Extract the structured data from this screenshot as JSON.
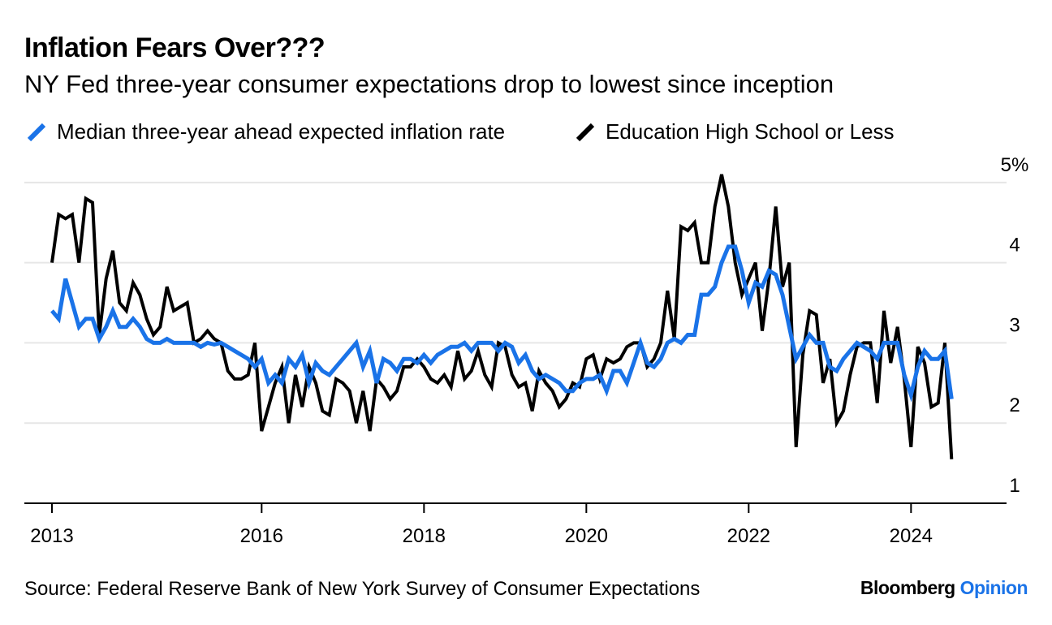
{
  "header": {
    "title": "Inflation Fears Over???",
    "subtitle": "NY Fed three-year consumer expectations drop to lowest since inception"
  },
  "footer": {
    "source": "Source: Federal Reserve Bank of New York Survey of Consumer Expectations",
    "brand_primary": "Bloomberg",
    "brand_accent": "Opinion"
  },
  "colors": {
    "median_series": "#1a73e8",
    "education_series": "#000000",
    "gridline": "#e6e6e6"
  },
  "chart_data": {
    "type": "line",
    "title": "Inflation Fears Over???",
    "subtitle": "NY Fed three-year consumer expectations drop to lowest since inception",
    "xlabel": "",
    "ylabel": "",
    "ylim": [
      1,
      5
    ],
    "y_ticks": [
      {
        "value": 5,
        "label": "5%"
      },
      {
        "value": 4,
        "label": "4"
      },
      {
        "value": 3,
        "label": "3"
      },
      {
        "value": 2,
        "label": "2"
      },
      {
        "value": 1,
        "label": "1"
      }
    ],
    "x_ticks": [
      {
        "value": "2013-06",
        "label": "2013"
      },
      {
        "value": "2016-01",
        "label": "2016"
      },
      {
        "value": "2018-01",
        "label": "2018"
      },
      {
        "value": "2020-01",
        "label": "2020"
      },
      {
        "value": "2022-01",
        "label": "2022"
      },
      {
        "value": "2024-01",
        "label": "2024"
      }
    ],
    "xlim": [
      "2013-03",
      "2025-04"
    ],
    "grid": true,
    "legend_position": "top-left",
    "series": [
      {
        "name": "Median three-year ahead expected inflation rate",
        "color": "#1a73e8",
        "points": [
          [
            "2013-06",
            3.4
          ],
          [
            "2013-07",
            3.3
          ],
          [
            "2013-08",
            3.8
          ],
          [
            "2013-09",
            3.5
          ],
          [
            "2013-10",
            3.2
          ],
          [
            "2013-11",
            3.3
          ],
          [
            "2013-12",
            3.3
          ],
          [
            "2014-01",
            3.05
          ],
          [
            "2014-02",
            3.2
          ],
          [
            "2014-03",
            3.4
          ],
          [
            "2014-04",
            3.2
          ],
          [
            "2014-05",
            3.2
          ],
          [
            "2014-06",
            3.3
          ],
          [
            "2014-07",
            3.2
          ],
          [
            "2014-08",
            3.05
          ],
          [
            "2014-09",
            3.0
          ],
          [
            "2014-10",
            3.0
          ],
          [
            "2014-11",
            3.05
          ],
          [
            "2014-12",
            3.0
          ],
          [
            "2015-01",
            3.0
          ],
          [
            "2015-02",
            3.0
          ],
          [
            "2015-03",
            3.0
          ],
          [
            "2015-04",
            2.95
          ],
          [
            "2015-05",
            3.0
          ],
          [
            "2015-06",
            2.98
          ],
          [
            "2015-07",
            3.0
          ],
          [
            "2015-08",
            2.95
          ],
          [
            "2015-09",
            2.9
          ],
          [
            "2015-10",
            2.85
          ],
          [
            "2015-11",
            2.8
          ],
          [
            "2015-12",
            2.7
          ],
          [
            "2016-01",
            2.8
          ],
          [
            "2016-02",
            2.5
          ],
          [
            "2016-03",
            2.6
          ],
          [
            "2016-04",
            2.5
          ],
          [
            "2016-05",
            2.8
          ],
          [
            "2016-06",
            2.7
          ],
          [
            "2016-07",
            2.85
          ],
          [
            "2016-08",
            2.5
          ],
          [
            "2016-09",
            2.75
          ],
          [
            "2016-10",
            2.65
          ],
          [
            "2016-11",
            2.6
          ],
          [
            "2016-12",
            2.7
          ],
          [
            "2017-01",
            2.8
          ],
          [
            "2017-02",
            2.9
          ],
          [
            "2017-03",
            3.0
          ],
          [
            "2017-04",
            2.7
          ],
          [
            "2017-05",
            2.9
          ],
          [
            "2017-06",
            2.5
          ],
          [
            "2017-07",
            2.8
          ],
          [
            "2017-08",
            2.75
          ],
          [
            "2017-09",
            2.65
          ],
          [
            "2017-10",
            2.8
          ],
          [
            "2017-11",
            2.8
          ],
          [
            "2017-12",
            2.75
          ],
          [
            "2018-01",
            2.85
          ],
          [
            "2018-02",
            2.75
          ],
          [
            "2018-03",
            2.85
          ],
          [
            "2018-04",
            2.9
          ],
          [
            "2018-05",
            2.95
          ],
          [
            "2018-06",
            2.95
          ],
          [
            "2018-07",
            3.0
          ],
          [
            "2018-08",
            2.9
          ],
          [
            "2018-09",
            3.0
          ],
          [
            "2018-10",
            3.0
          ],
          [
            "2018-11",
            3.0
          ],
          [
            "2018-12",
            2.9
          ],
          [
            "2019-01",
            3.0
          ],
          [
            "2019-02",
            2.95
          ],
          [
            "2019-03",
            2.75
          ],
          [
            "2019-04",
            2.85
          ],
          [
            "2019-05",
            2.65
          ],
          [
            "2019-06",
            2.55
          ],
          [
            "2019-07",
            2.6
          ],
          [
            "2019-08",
            2.55
          ],
          [
            "2019-09",
            2.5
          ],
          [
            "2019-10",
            2.4
          ],
          [
            "2019-11",
            2.4
          ],
          [
            "2019-12",
            2.5
          ],
          [
            "2020-01",
            2.55
          ],
          [
            "2020-02",
            2.55
          ],
          [
            "2020-03",
            2.6
          ],
          [
            "2020-04",
            2.4
          ],
          [
            "2020-05",
            2.65
          ],
          [
            "2020-06",
            2.65
          ],
          [
            "2020-07",
            2.5
          ],
          [
            "2020-08",
            2.75
          ],
          [
            "2020-09",
            3.0
          ],
          [
            "2020-10",
            2.75
          ],
          [
            "2020-11",
            2.7
          ],
          [
            "2020-12",
            2.8
          ],
          [
            "2021-01",
            3.0
          ],
          [
            "2021-02",
            3.05
          ],
          [
            "2021-03",
            3.0
          ],
          [
            "2021-04",
            3.1
          ],
          [
            "2021-05",
            3.1
          ],
          [
            "2021-06",
            3.6
          ],
          [
            "2021-07",
            3.6
          ],
          [
            "2021-08",
            3.7
          ],
          [
            "2021-09",
            4.0
          ],
          [
            "2021-10",
            4.2
          ],
          [
            "2021-11",
            4.2
          ],
          [
            "2021-12",
            3.9
          ],
          [
            "2022-01",
            3.5
          ],
          [
            "2022-02",
            3.75
          ],
          [
            "2022-03",
            3.7
          ],
          [
            "2022-04",
            3.9
          ],
          [
            "2022-05",
            3.85
          ],
          [
            "2022-06",
            3.6
          ],
          [
            "2022-07",
            3.2
          ],
          [
            "2022-08",
            2.8
          ],
          [
            "2022-09",
            2.95
          ],
          [
            "2022-10",
            3.1
          ],
          [
            "2022-11",
            3.0
          ],
          [
            "2022-12",
            3.0
          ],
          [
            "2023-01",
            2.7
          ],
          [
            "2023-02",
            2.65
          ],
          [
            "2023-03",
            2.8
          ],
          [
            "2023-04",
            2.9
          ],
          [
            "2023-05",
            3.0
          ],
          [
            "2023-06",
            2.95
          ],
          [
            "2023-07",
            2.9
          ],
          [
            "2023-08",
            2.8
          ],
          [
            "2023-09",
            3.0
          ],
          [
            "2023-10",
            3.0
          ],
          [
            "2023-11",
            3.0
          ],
          [
            "2023-12",
            2.6
          ],
          [
            "2024-01",
            2.35
          ],
          [
            "2024-02",
            2.7
          ],
          [
            "2024-03",
            2.9
          ],
          [
            "2024-04",
            2.8
          ],
          [
            "2024-05",
            2.8
          ],
          [
            "2024-06",
            2.9
          ],
          [
            "2024-07",
            2.3
          ]
        ]
      },
      {
        "name": "Education High School or Less",
        "color": "#000000",
        "points": [
          [
            "2013-06",
            4.0
          ],
          [
            "2013-07",
            4.6
          ],
          [
            "2013-08",
            4.55
          ],
          [
            "2013-09",
            4.6
          ],
          [
            "2013-10",
            4.0
          ],
          [
            "2013-11",
            4.8
          ],
          [
            "2013-12",
            4.75
          ],
          [
            "2014-01",
            3.1
          ],
          [
            "2014-02",
            3.8
          ],
          [
            "2014-03",
            4.15
          ],
          [
            "2014-04",
            3.5
          ],
          [
            "2014-05",
            3.4
          ],
          [
            "2014-06",
            3.75
          ],
          [
            "2014-07",
            3.6
          ],
          [
            "2014-08",
            3.3
          ],
          [
            "2014-09",
            3.1
          ],
          [
            "2014-10",
            3.2
          ],
          [
            "2014-11",
            3.7
          ],
          [
            "2014-12",
            3.4
          ],
          [
            "2015-01",
            3.45
          ],
          [
            "2015-02",
            3.5
          ],
          [
            "2015-03",
            3.0
          ],
          [
            "2015-04",
            3.05
          ],
          [
            "2015-05",
            3.15
          ],
          [
            "2015-06",
            3.05
          ],
          [
            "2015-07",
            3.0
          ],
          [
            "2015-08",
            2.65
          ],
          [
            "2015-09",
            2.55
          ],
          [
            "2015-10",
            2.55
          ],
          [
            "2015-11",
            2.6
          ],
          [
            "2015-12",
            3.0
          ],
          [
            "2016-01",
            1.9
          ],
          [
            "2016-02",
            2.2
          ],
          [
            "2016-03",
            2.5
          ],
          [
            "2016-04",
            2.7
          ],
          [
            "2016-05",
            2.0
          ],
          [
            "2016-06",
            2.6
          ],
          [
            "2016-07",
            2.2
          ],
          [
            "2016-08",
            2.7
          ],
          [
            "2016-09",
            2.5
          ],
          [
            "2016-10",
            2.15
          ],
          [
            "2016-11",
            2.1
          ],
          [
            "2016-12",
            2.55
          ],
          [
            "2017-01",
            2.5
          ],
          [
            "2017-02",
            2.4
          ],
          [
            "2017-03",
            2.0
          ],
          [
            "2017-04",
            2.4
          ],
          [
            "2017-05",
            1.9
          ],
          [
            "2017-06",
            2.55
          ],
          [
            "2017-07",
            2.45
          ],
          [
            "2017-08",
            2.3
          ],
          [
            "2017-09",
            2.4
          ],
          [
            "2017-10",
            2.7
          ],
          [
            "2017-11",
            2.7
          ],
          [
            "2017-12",
            2.8
          ],
          [
            "2018-01",
            2.7
          ],
          [
            "2018-02",
            2.55
          ],
          [
            "2018-03",
            2.5
          ],
          [
            "2018-04",
            2.6
          ],
          [
            "2018-05",
            2.45
          ],
          [
            "2018-06",
            2.9
          ],
          [
            "2018-07",
            2.55
          ],
          [
            "2018-08",
            2.65
          ],
          [
            "2018-09",
            2.9
          ],
          [
            "2018-10",
            2.6
          ],
          [
            "2018-11",
            2.45
          ],
          [
            "2018-12",
            3.0
          ],
          [
            "2019-01",
            2.95
          ],
          [
            "2019-02",
            2.6
          ],
          [
            "2019-03",
            2.45
          ],
          [
            "2019-04",
            2.5
          ],
          [
            "2019-05",
            2.15
          ],
          [
            "2019-06",
            2.65
          ],
          [
            "2019-07",
            2.5
          ],
          [
            "2019-08",
            2.4
          ],
          [
            "2019-09",
            2.2
          ],
          [
            "2019-10",
            2.3
          ],
          [
            "2019-11",
            2.5
          ],
          [
            "2019-12",
            2.45
          ],
          [
            "2020-01",
            2.8
          ],
          [
            "2020-02",
            2.85
          ],
          [
            "2020-03",
            2.55
          ],
          [
            "2020-04",
            2.8
          ],
          [
            "2020-05",
            2.75
          ],
          [
            "2020-06",
            2.8
          ],
          [
            "2020-07",
            2.95
          ],
          [
            "2020-08",
            3.0
          ],
          [
            "2020-09",
            3.0
          ],
          [
            "2020-10",
            2.7
          ],
          [
            "2020-11",
            2.8
          ],
          [
            "2020-12",
            3.0
          ],
          [
            "2021-01",
            3.65
          ],
          [
            "2021-02",
            3.05
          ],
          [
            "2021-03",
            4.45
          ],
          [
            "2021-04",
            4.4
          ],
          [
            "2021-05",
            4.5
          ],
          [
            "2021-06",
            4.0
          ],
          [
            "2021-07",
            4.0
          ],
          [
            "2021-08",
            4.7
          ],
          [
            "2021-09",
            5.1
          ],
          [
            "2021-10",
            4.7
          ],
          [
            "2021-11",
            4.0
          ],
          [
            "2021-12",
            3.6
          ],
          [
            "2022-01",
            3.8
          ],
          [
            "2022-02",
            4.0
          ],
          [
            "2022-03",
            3.15
          ],
          [
            "2022-04",
            3.8
          ],
          [
            "2022-05",
            4.7
          ],
          [
            "2022-06",
            3.7
          ],
          [
            "2022-07",
            4.0
          ],
          [
            "2022-08",
            1.7
          ],
          [
            "2022-09",
            2.85
          ],
          [
            "2022-10",
            3.4
          ],
          [
            "2022-11",
            3.35
          ],
          [
            "2022-12",
            2.5
          ],
          [
            "2023-01",
            2.8
          ],
          [
            "2023-02",
            2.0
          ],
          [
            "2023-03",
            2.15
          ],
          [
            "2023-04",
            2.6
          ],
          [
            "2023-05",
            2.95
          ],
          [
            "2023-06",
            3.0
          ],
          [
            "2023-07",
            3.0
          ],
          [
            "2023-08",
            2.25
          ],
          [
            "2023-09",
            3.4
          ],
          [
            "2023-10",
            2.75
          ],
          [
            "2023-11",
            3.2
          ],
          [
            "2023-12",
            2.55
          ],
          [
            "2024-01",
            1.7
          ],
          [
            "2024-02",
            2.95
          ],
          [
            "2024-03",
            2.75
          ],
          [
            "2024-04",
            2.2
          ],
          [
            "2024-05",
            2.25
          ],
          [
            "2024-06",
            3.0
          ],
          [
            "2024-07",
            1.55
          ]
        ]
      }
    ]
  }
}
